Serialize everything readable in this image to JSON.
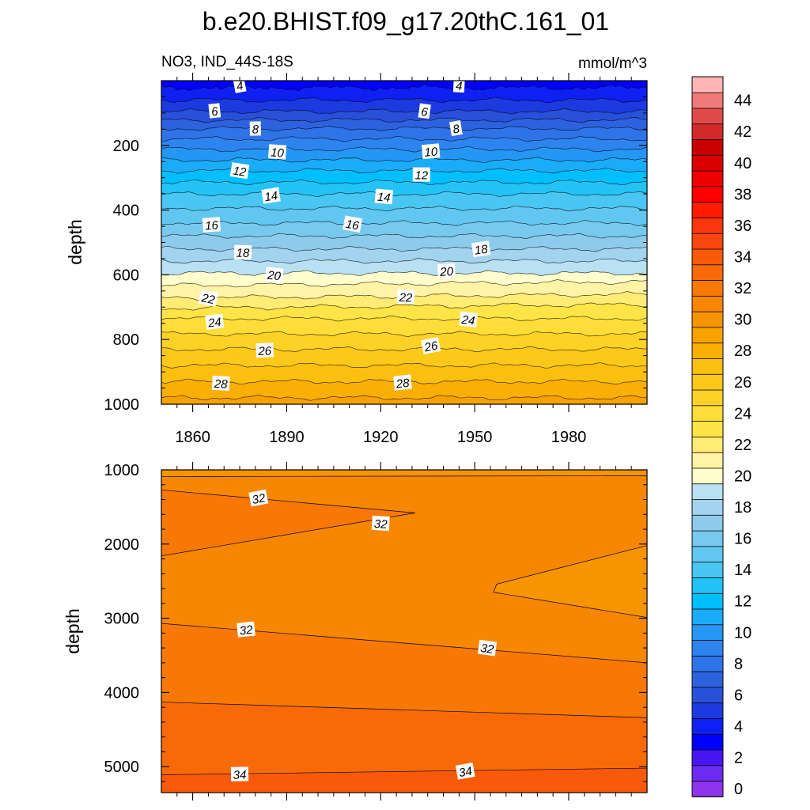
{
  "chart_data": [
    {
      "type": "heatmap",
      "panel": "upper",
      "title": "b.e20.BHIST.f09_g17.20thC.161_01",
      "subtitle_left": "NO3, IND_44S-18S",
      "subtitle_right": "mmol/m^3",
      "xlabel": "",
      "ylabel": "depth",
      "xlim": [
        1850,
        2005
      ],
      "ylim": [
        1000,
        0
      ],
      "x_ticks": [
        1860,
        1890,
        1920,
        1950,
        1980
      ],
      "x_tick_labels": [
        "1860",
        "1890",
        "1920",
        "1950",
        "1980"
      ],
      "y_ticks": [
        200,
        400,
        600,
        800,
        1000
      ],
      "y_tick_labels": [
        "200",
        "400",
        "600",
        "800",
        "1000"
      ],
      "grid": false,
      "contour_interval": 1,
      "contour_depths": [
        {
          "value": 4,
          "depth": 25
        },
        {
          "value": 6,
          "depth": 95
        },
        {
          "value": 8,
          "depth": 148
        },
        {
          "value": 10,
          "depth": 212
        },
        {
          "value": 12,
          "depth": 278
        },
        {
          "value": 14,
          "depth": 350
        },
        {
          "value": 16,
          "depth": 440
        },
        {
          "value": 18,
          "depth": 520
        },
        {
          "value": 20,
          "depth": 595
        },
        {
          "value": 22,
          "depth": 672
        },
        {
          "value": 24,
          "depth": 735
        },
        {
          "value": 26,
          "depth": 830
        },
        {
          "value": 28,
          "depth": 930
        }
      ],
      "contour_labels": [
        {
          "text": "4",
          "x": 1875,
          "y": 14
        },
        {
          "text": "4",
          "x": 1945,
          "y": 14
        },
        {
          "text": "6",
          "x": 1867,
          "y": 93
        },
        {
          "text": "6",
          "x": 1934,
          "y": 94
        },
        {
          "text": "8",
          "x": 1880,
          "y": 148
        },
        {
          "text": "8",
          "x": 1944,
          "y": 147
        },
        {
          "text": "10",
          "x": 1887,
          "y": 220
        },
        {
          "text": "10",
          "x": 1936,
          "y": 218
        },
        {
          "text": "12",
          "x": 1875,
          "y": 278
        },
        {
          "text": "12",
          "x": 1933,
          "y": 290
        },
        {
          "text": "14",
          "x": 1885,
          "y": 355
        },
        {
          "text": "14",
          "x": 1921,
          "y": 358
        },
        {
          "text": "16",
          "x": 1866,
          "y": 445
        },
        {
          "text": "16",
          "x": 1911,
          "y": 443
        },
        {
          "text": "18",
          "x": 1876,
          "y": 530
        },
        {
          "text": "18",
          "x": 1952,
          "y": 520
        },
        {
          "text": "20",
          "x": 1886,
          "y": 600
        },
        {
          "text": "20",
          "x": 1941,
          "y": 588
        },
        {
          "text": "22",
          "x": 1865,
          "y": 672
        },
        {
          "text": "22",
          "x": 1928,
          "y": 668
        },
        {
          "text": "24",
          "x": 1867,
          "y": 745
        },
        {
          "text": "24",
          "x": 1948,
          "y": 738
        },
        {
          "text": "26",
          "x": 1883,
          "y": 833
        },
        {
          "text": "26",
          "x": 1936,
          "y": 819
        },
        {
          "text": "28",
          "x": 1869,
          "y": 935
        },
        {
          "text": "28",
          "x": 1927,
          "y": 933
        }
      ]
    },
    {
      "type": "heatmap",
      "panel": "lower",
      "xlabel": "",
      "ylabel": "depth",
      "xlim": [
        1850,
        2005
      ],
      "ylim": [
        5350,
        1000
      ],
      "y_ticks": [
        1000,
        2000,
        3000,
        4000,
        5000
      ],
      "y_tick_labels": [
        "1000",
        "2000",
        "3000",
        "4000",
        "5000"
      ],
      "grid": false,
      "contour_labels": [
        {
          "text": "32",
          "x": 1881,
          "y": 1380
        },
        {
          "text": "32",
          "x": 1920,
          "y": 1720
        },
        {
          "text": "32",
          "x": 1877,
          "y": 3150
        },
        {
          "text": "32",
          "x": 1954,
          "y": 3400
        },
        {
          "text": "34",
          "x": 1875,
          "y": 5100
        },
        {
          "text": "34",
          "x": 1947,
          "y": 5060
        }
      ]
    }
  ],
  "colorbar": {
    "labels": [
      "0",
      "2",
      "4",
      "6",
      "8",
      "10",
      "12",
      "14",
      "16",
      "18",
      "20",
      "22",
      "24",
      "26",
      "28",
      "30",
      "32",
      "34",
      "36",
      "38",
      "40",
      "42",
      "44"
    ],
    "colors": [
      "#8e33ee",
      "#6b2bf0",
      "#4716f2",
      "#0000ff",
      "#0e20f2",
      "#1c3adf",
      "#2850d8",
      "#2d62df",
      "#2f73e8",
      "#2e84ef",
      "#2497f4",
      "#1aacf8",
      "#00bfff",
      "#23c3f6",
      "#49c6f2",
      "#61c7f0",
      "#77c9ee",
      "#8dcbec",
      "#a2d3ef",
      "#b9e0f3",
      "#fffecc",
      "#fff3a6",
      "#ffec75",
      "#ffe447",
      "#fedd38",
      "#fdd226",
      "#fcc91a",
      "#fbbf10",
      "#faaf06",
      "#f8a200",
      "#f79402",
      "#f78603",
      "#f77805",
      "#f86a07",
      "#f95a09",
      "#fa470c",
      "#fb360c",
      "#ff1c00",
      "#ff0000",
      "#ee0000",
      "#db0000",
      "#c90000",
      "#d22a2a",
      "#e24a4a",
      "#f07a7a",
      "#feb5b5"
    ]
  }
}
